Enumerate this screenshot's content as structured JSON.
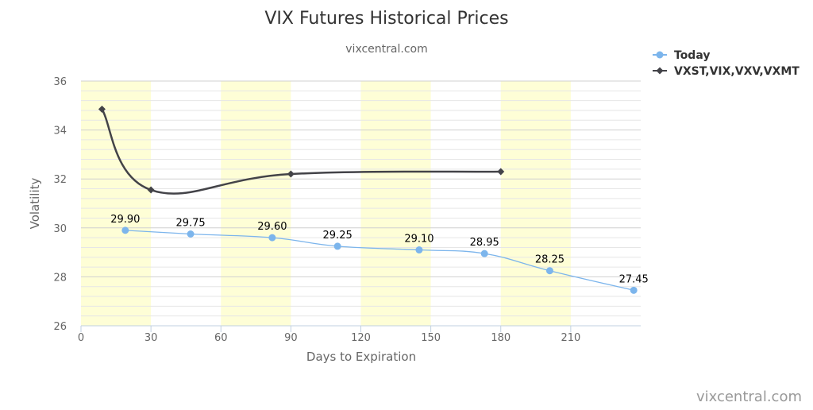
{
  "chart_data": {
    "type": "line",
    "title": "VIX Futures Historical Prices",
    "subtitle": "vixcentral.com",
    "xlabel": "Days to Expiration",
    "ylabel": "Volatility",
    "xlim": [
      0,
      240
    ],
    "ylim": [
      26,
      36
    ],
    "x_ticks": [
      "0",
      "30",
      "60",
      "90",
      "120",
      "150",
      "180",
      "210"
    ],
    "y_ticks": [
      "26",
      "28",
      "30",
      "32",
      "34",
      "36"
    ],
    "shaded_bands": [
      [
        0,
        30
      ],
      [
        60,
        90
      ],
      [
        120,
        150
      ],
      [
        180,
        210
      ]
    ],
    "band_color": "#fefed6",
    "grid": true,
    "legend_position": "top-right",
    "series": [
      {
        "name": "Today",
        "color": "#7cb5ec",
        "marker": "circle",
        "x": [
          19,
          47,
          82,
          110,
          145,
          173,
          201,
          237
        ],
        "y": [
          29.9,
          29.75,
          29.6,
          29.25,
          29.1,
          28.95,
          28.25,
          27.45
        ],
        "labels": [
          "29.90",
          "29.75",
          "29.60",
          "29.25",
          "29.10",
          "28.95",
          "28.25",
          "27.45"
        ]
      },
      {
        "name": "VXST,VIX,VXV,VXMT",
        "color": "#434348",
        "marker": "diamond",
        "x": [
          9,
          30,
          90,
          180
        ],
        "y": [
          34.85,
          31.55,
          32.2,
          32.3
        ]
      }
    ],
    "credit": "vixcentral.com"
  }
}
